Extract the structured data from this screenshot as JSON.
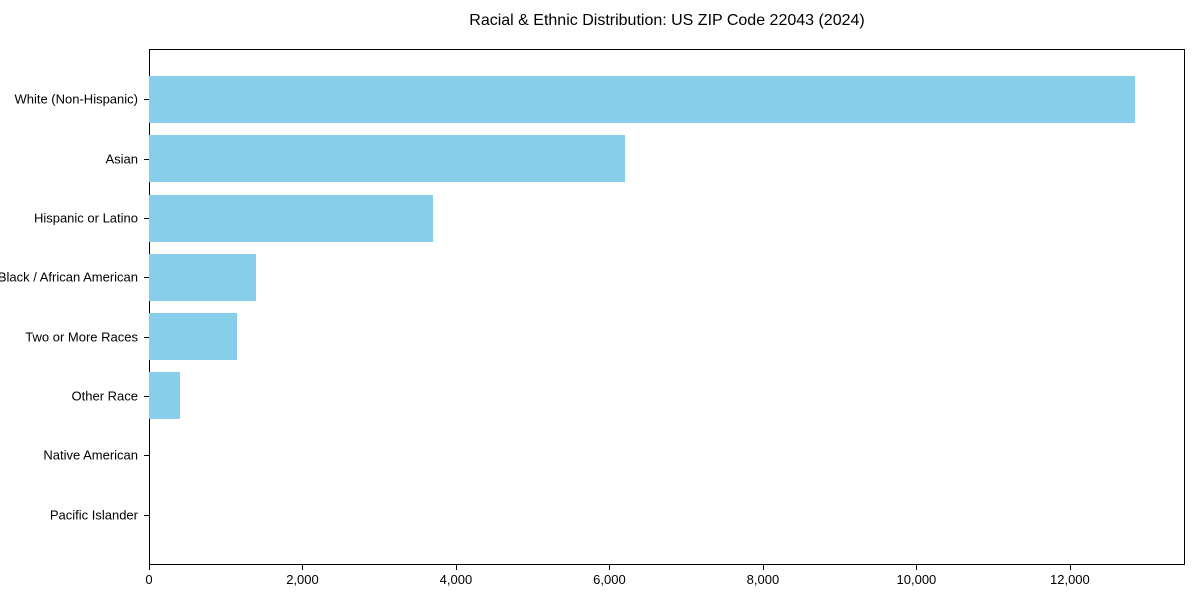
{
  "chart_data": {
    "type": "bar",
    "orientation": "horizontal",
    "title": "Racial & Ethnic Distribution: US ZIP Code 22043 (2024)",
    "categories": [
      "White (Non-Hispanic)",
      "Asian",
      "Hispanic or Latino",
      "Black / African American",
      "Two or More Races",
      "Other Race",
      "Native American",
      "Pacific Islander"
    ],
    "values": [
      12850,
      6200,
      3700,
      1400,
      1150,
      400,
      0,
      0
    ],
    "xlabel": "",
    "ylabel": "",
    "xlim": [
      0,
      13500
    ],
    "xticks": [
      0,
      2000,
      4000,
      6000,
      8000,
      10000,
      12000
    ],
    "xtick_labels": [
      "0",
      "2,000",
      "4,000",
      "6,000",
      "8,000",
      "10,000",
      "12,000"
    ],
    "bar_color": "#87CEEB",
    "background_color": "#FFFFFF",
    "spine_color": "#000000",
    "grid": false,
    "legend": null
  }
}
